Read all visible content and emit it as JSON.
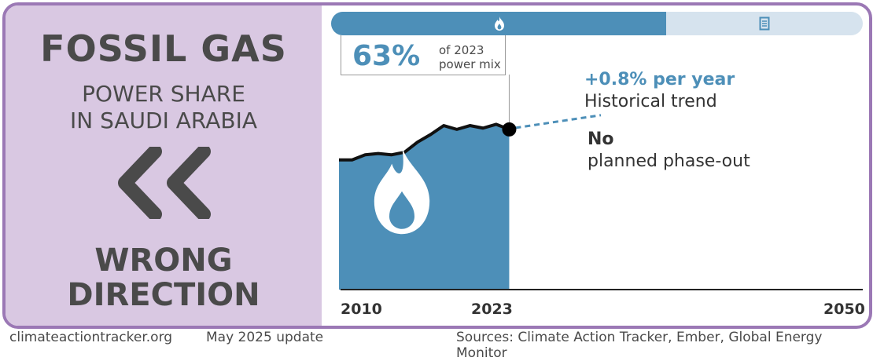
{
  "left_panel": {
    "title": "FOSSIL GAS",
    "subtitle_line1": "POWER SHARE",
    "subtitle_line2": "IN SAUDI ARABIA",
    "direction_icon": "double-chevron-left-icon",
    "status_line1": "WRONG",
    "status_line2": "DIRECTION"
  },
  "top_bar": {
    "fossil_share": 0.63,
    "fossil_icon": "flame-icon",
    "other_icon": "battery-icon"
  },
  "callout": {
    "percent": "63%",
    "caption_line1": "of 2023",
    "caption_line2": "power mix"
  },
  "trend": {
    "value": "+0.8% per year",
    "label": "Historical trend"
  },
  "phaseout": {
    "line1": "No",
    "line2": "planned phase-out"
  },
  "footer": {
    "site": "climateactiontracker.org",
    "date": "May 2025 update",
    "sources": "Sources: Climate Action Tracker, Ember, Global Energy Monitor"
  },
  "colors": {
    "accent": "#4d8fb8",
    "accent_light": "#d6e3ee",
    "panel": "#d9c8e2",
    "border": "#9b78b5"
  },
  "chart_data": {
    "type": "area",
    "x_tick_labels": [
      "2010",
      "2023",
      "2050"
    ],
    "xlim": [
      2010,
      2050
    ],
    "ylim": [
      0,
      100
    ],
    "x": [
      2010,
      2011,
      2012,
      2013,
      2014,
      2015,
      2016,
      2017,
      2018,
      2019,
      2020,
      2021,
      2022,
      2023
    ],
    "values": [
      51,
      51,
      53,
      53.5,
      53,
      54,
      58,
      61,
      64.5,
      63,
      64.5,
      63.5,
      65,
      63
    ],
    "fill_icon": "flame-icon",
    "trend_projection_end_year": 2030
  }
}
